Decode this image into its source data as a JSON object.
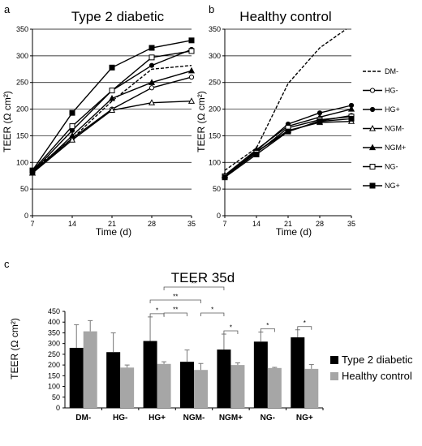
{
  "panels": {
    "a": "a",
    "b": "b",
    "c": "c"
  },
  "chart_data": [
    {
      "type": "line",
      "title": "Type 2 diabetic",
      "xlabel": "Time (d)",
      "ylabel": "TEER (Ω cm²)",
      "x": [
        7,
        14,
        21,
        28,
        35
      ],
      "xlim": [
        7,
        35
      ],
      "ylim": [
        0,
        350
      ],
      "yticks": [
        0,
        50,
        100,
        150,
        200,
        250,
        300,
        350
      ],
      "grid": true,
      "series": [
        {
          "name": "DM-",
          "marker": "none",
          "dashed": true,
          "values": [
            85,
            145,
            215,
            275,
            282
          ]
        },
        {
          "name": "HG-",
          "marker": "open-circle",
          "dashed": false,
          "values": [
            82,
            145,
            200,
            240,
            260
          ]
        },
        {
          "name": "HG+",
          "marker": "filled-circle",
          "dashed": false,
          "values": [
            82,
            160,
            235,
            282,
            312
          ]
        },
        {
          "name": "NGM-",
          "marker": "open-triangle",
          "dashed": false,
          "values": [
            80,
            142,
            198,
            212,
            215
          ]
        },
        {
          "name": "NGM+",
          "marker": "filled-triangle",
          "dashed": false,
          "values": [
            80,
            150,
            220,
            250,
            272
          ]
        },
        {
          "name": "NG-",
          "marker": "open-square",
          "dashed": false,
          "values": [
            84,
            168,
            235,
            297,
            309
          ]
        },
        {
          "name": "NG+",
          "marker": "filled-square",
          "dashed": false,
          "values": [
            85,
            193,
            278,
            315,
            329
          ]
        }
      ]
    },
    {
      "type": "line",
      "title": "Healthy control",
      "xlabel": "Time (d)",
      "ylabel": "TEER (Ω cm²)",
      "x": [
        7,
        14,
        21,
        28,
        35
      ],
      "xlim": [
        7,
        35
      ],
      "ylim": [
        0,
        350
      ],
      "yticks": [
        0,
        50,
        100,
        150,
        200,
        250,
        300,
        350
      ],
      "grid": true,
      "legend": "right",
      "series": [
        {
          "name": "DM-",
          "marker": "none",
          "dashed": true,
          "values": [
            85,
            127,
            248,
            315,
            357
          ]
        },
        {
          "name": "HG-",
          "marker": "open-circle",
          "dashed": false,
          "values": [
            73,
            120,
            158,
            178,
            188
          ]
        },
        {
          "name": "HG+",
          "marker": "filled-circle",
          "dashed": false,
          "values": [
            72,
            122,
            172,
            193,
            207
          ]
        },
        {
          "name": "NGM-",
          "marker": "open-triangle",
          "dashed": false,
          "values": [
            75,
            120,
            160,
            175,
            177
          ]
        },
        {
          "name": "NGM+",
          "marker": "filled-triangle",
          "dashed": false,
          "values": [
            76,
            124,
            168,
            185,
            200
          ]
        },
        {
          "name": "NG-",
          "marker": "open-square",
          "dashed": false,
          "values": [
            74,
            118,
            165,
            180,
            186
          ]
        },
        {
          "name": "NG+",
          "marker": "filled-square",
          "dashed": false,
          "values": [
            72,
            115,
            158,
            177,
            182
          ]
        }
      ]
    },
    {
      "type": "bar",
      "title": "TEER 35d",
      "ylabel": "TEER (Ω cm²)",
      "categories": [
        "DM-",
        "HG-",
        "HG+",
        "NGM-",
        "NGM+",
        "NG-",
        "NG+"
      ],
      "ylim": [
        0,
        450
      ],
      "yticks": [
        0,
        50,
        100,
        150,
        200,
        250,
        300,
        350,
        400,
        450
      ],
      "legend": "right",
      "colors": {
        "diabetic": "#000000",
        "healthy": "#a6a6a6"
      },
      "series": [
        {
          "name": "Type 2 diabetic",
          "values": [
            280,
            260,
            312,
            215,
            272,
            309,
            329
          ],
          "errors": [
            108,
            90,
            112,
            55,
            72,
            45,
            35
          ]
        },
        {
          "name": "Healthy control",
          "values": [
            357,
            188,
            205,
            177,
            200,
            186,
            182
          ],
          "errors": [
            50,
            12,
            10,
            30,
            10,
            3,
            20
          ]
        }
      ],
      "significance": [
        {
          "from": [
            2,
            0
          ],
          "to": [
            2,
            1
          ],
          "label": "*"
        },
        {
          "from": [
            2,
            0
          ],
          "to": [
            3,
            1
          ],
          "label": "**"
        },
        {
          "from": [
            2,
            1
          ],
          "to": [
            3,
            0
          ],
          "label": "**"
        },
        {
          "from": [
            2,
            1
          ],
          "to": [
            4,
            0
          ],
          "label": "**"
        },
        {
          "from": [
            4,
            0
          ],
          "to": [
            4,
            1
          ],
          "label": "*"
        },
        {
          "from": [
            3,
            1
          ],
          "to": [
            4,
            0
          ],
          "label": "*"
        },
        {
          "from": [
            5,
            0
          ],
          "to": [
            5,
            1
          ],
          "label": "*"
        },
        {
          "from": [
            6,
            0
          ],
          "to": [
            6,
            1
          ],
          "label": "*"
        }
      ]
    }
  ]
}
